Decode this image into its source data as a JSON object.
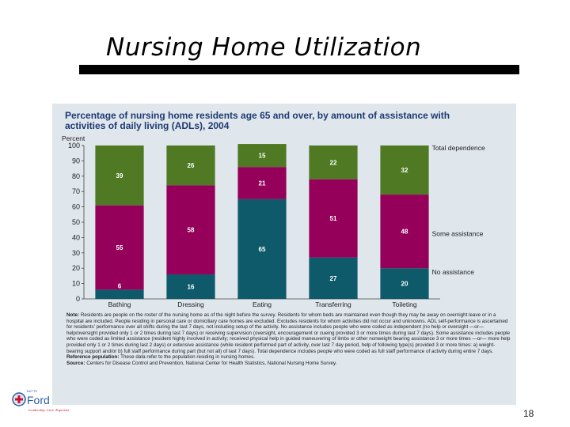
{
  "slide": {
    "title": "Nursing Home Utilization",
    "page_number": "18"
  },
  "logo": {
    "small_text": "BUTTE",
    "name": "Ford",
    "tagline": "Leadership. Care. Expertise."
  },
  "colors": {
    "total_dependence": "#4f7a23",
    "some_assistance": "#95005a",
    "no_assistance": "#0e5a6a",
    "figure_background": "#dfe6ec",
    "title_blue": "#1f3a73"
  },
  "notes": {
    "note_label": "Note:",
    "note": "Residents are people on the roster of the nursing home as of the night before the survey. Residents for whom beds are maintained even though they may be away on overnight leave or in a hospital are included. People residing in personal care or domiciliary care homes are excluded. Excludes residents for whom activities did not occur and unknowns. ADL self-performance is ascertained for residents' performance over all shifts during the last 7 days, not including setup of the activity. No assistance includes people who were coded as independent (no help or oversight —or— help/oversight provided only 1 or 2 times during last 7 days) or receiving supervision (oversight, encouragement or cueing provided 3 or more times during last 7 days). Some assistance includes people who were coded as limited assistance (resident highly involved in activity; received physical help in guided maneuvering of limbs or other nonweight bearing assistance 3 or more times —or— more help provided only 1 or 2 times during last 2 days) or extensive assistance (while resident performed part of activity, over last 7 day period, help of following type(s) provided 3 or more times: a) weight-bearing support and/or b) full staff performance during part (but not all) of last 7 days). Total dependence includes people who were coded as full staff performance of activity during entire 7 days.",
    "reference_label": "Reference population:",
    "reference": "These data refer to the population residing in nursing homes.",
    "source_label": "Source:",
    "source": "Centers for Disease Control and Prevention, National Center for Health Statistics, National Nursing Home Survey."
  },
  "chart_data": {
    "type": "bar",
    "stacked": true,
    "title": "Percentage of nursing home residents age 65 and over, by amount of assistance with activities of daily living (ADLs), 2004",
    "ylabel": "Percent",
    "ylim": [
      0,
      100
    ],
    "yticks": [
      0,
      10,
      20,
      30,
      40,
      50,
      60,
      70,
      80,
      90,
      100
    ],
    "grid": false,
    "legend_placement": "right",
    "categories": [
      "Bathing",
      "Dressing",
      "Eating",
      "Transferring",
      "Toileting"
    ],
    "series": [
      {
        "name": "No assistance",
        "values": [
          6,
          16,
          65,
          27,
          20
        ]
      },
      {
        "name": "Some assistance",
        "values": [
          55,
          58,
          21,
          51,
          48
        ]
      },
      {
        "name": "Total dependence",
        "values": [
          39,
          26,
          15,
          22,
          32
        ]
      }
    ]
  }
}
